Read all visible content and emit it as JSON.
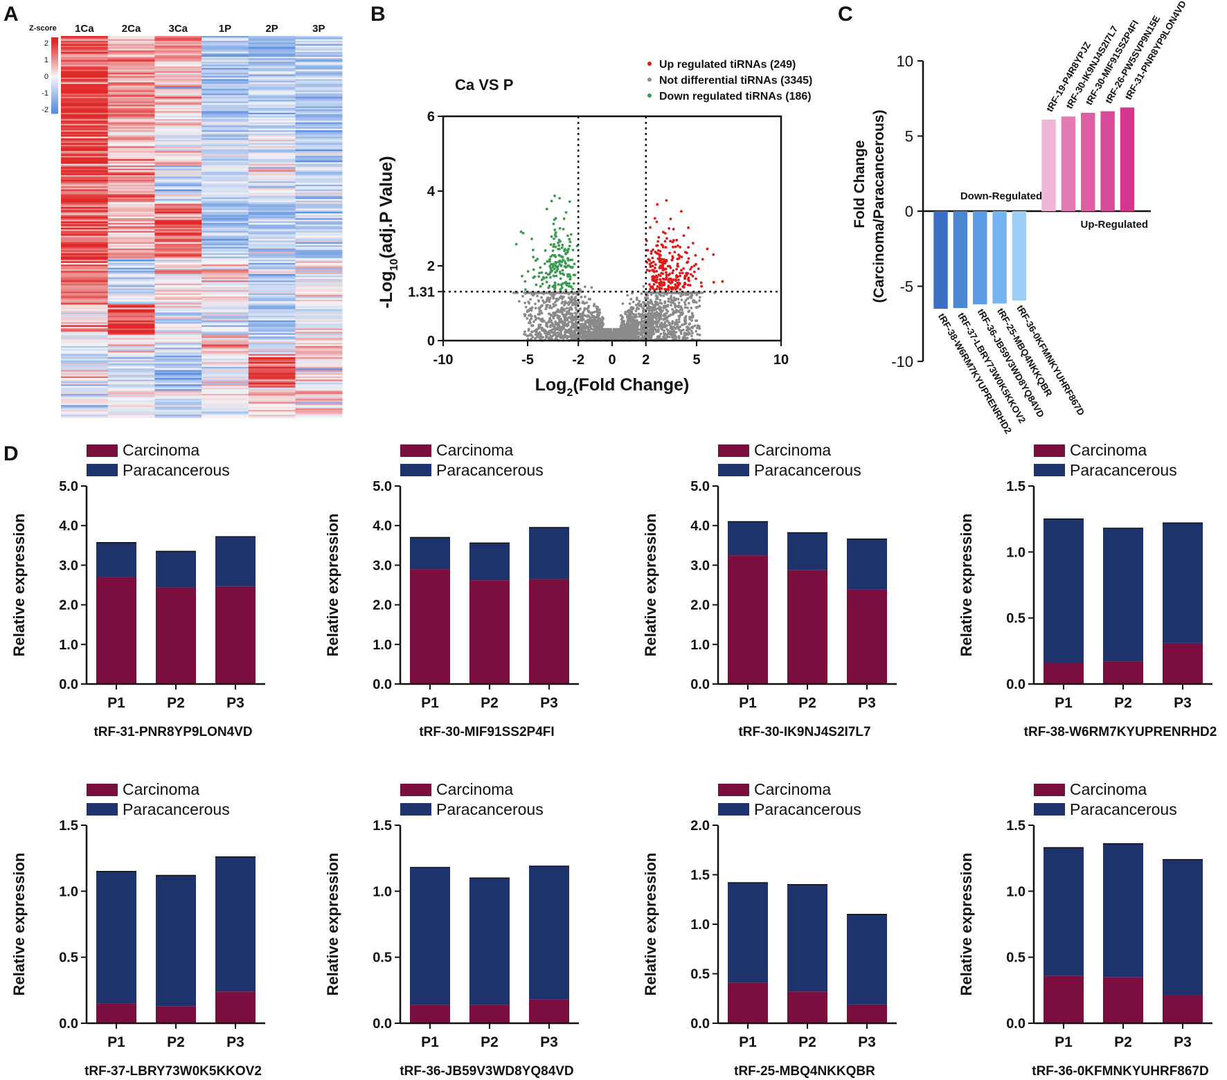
{
  "colors": {
    "carcinoma": "#7a0f3f",
    "paracancerous": "#1e336b",
    "heat_red": "#e02828",
    "heat_white": "#f5f5f7",
    "heat_blue": "#5b8fe0",
    "volcano_up": "#e01818",
    "volcano_nd": "#8a8a8a",
    "volcano_down": "#3a9a50"
  },
  "panels": {
    "A": "A",
    "B": "B",
    "C": "C",
    "D": "D"
  },
  "chart_data": [
    {
      "id": "heatmap",
      "type": "heatmap",
      "columns": [
        "1Ca",
        "2Ca",
        "3Ca",
        "1P",
        "2P",
        "3P"
      ],
      "scale_title": "Z-score",
      "scale_ticks": [
        "2",
        "1",
        "0",
        "-1",
        "-2"
      ],
      "note": "tiRNA expression z-scores, rows clustered"
    },
    {
      "id": "volcano",
      "type": "scatter",
      "title": "Ca VS P",
      "xlabel": "Log",
      "xlabel_sub": "2",
      "xlabel_rest": "(Fold Change)",
      "ylabel": "-Log",
      "ylabel_sub": "10",
      "ylabel_rest": "(adj.P Value)",
      "xlim": [
        -10,
        10
      ],
      "ylim": [
        0,
        6
      ],
      "x_ticks": [
        "-10",
        "-5",
        "-2",
        "0",
        "2",
        "5",
        "10"
      ],
      "y_ticks": [
        "0",
        "1.31",
        "2",
        "4",
        "6"
      ],
      "thresholds": {
        "log2fc": 2,
        "neglog10p": 1.31
      },
      "legend": [
        {
          "label": "Up regulated tiRNAs (249)",
          "key": "volcano_up"
        },
        {
          "label": "Not differential tiRNAs (3345)",
          "key": "volcano_nd"
        },
        {
          "label": "Down regulated tiRNAs (186)",
          "key": "volcano_down"
        }
      ],
      "counts": {
        "up": 249,
        "nd": 3345,
        "down": 186
      }
    },
    {
      "id": "foldchange",
      "type": "bar",
      "ylabel": "Fold Change",
      "ylabel2": "(Carcinoma/Paracancerous)",
      "ylim": [
        -10,
        10
      ],
      "y_ticks": [
        "10",
        "5",
        "0",
        "-5",
        "-10"
      ],
      "down_label": "Down-Regulated",
      "up_label": "Up-Regulated",
      "categories": [
        "tRF-38-W6RM7KYUPRENRHD2",
        "tRF-37-LBRY73W0K5KKOV2",
        "tRF-36-JB59V3WD8YQ84VD",
        "tRF-25-MBQ4NKKQBR",
        "tRF-36-0KFMNKYUHRF867D",
        "tRF-19-P4R8YPJZ",
        "tRF-30-IK9NJ4S2I7L7",
        "tRF-30-MIF91SS2P4FI",
        "tRF-26-PW5SVP9N15E",
        "tRF-31-PNR8YP9LON4VD"
      ],
      "values": [
        -6.5,
        -6.45,
        -6.2,
        -6.15,
        -5.95,
        6.1,
        6.3,
        6.55,
        6.65,
        6.9
      ],
      "bar_colors": [
        "#3a6fc4",
        "#4a86d4",
        "#5a9ce6",
        "#74b4f0",
        "#9ccff7",
        "#efb6d6",
        "#e47ab3",
        "#de5ea4",
        "#d94a9a",
        "#d4368e"
      ]
    },
    {
      "id": "d1",
      "type": "bar",
      "title": "tRF-31-PNR8YP9LON4VD",
      "categories": [
        "P1",
        "P2",
        "P3"
      ],
      "series": [
        {
          "name": "Carcinoma",
          "values": [
            2.7,
            2.44,
            2.47
          ]
        },
        {
          "name": "Paracancerous",
          "values": [
            0.87,
            0.91,
            1.25
          ]
        }
      ],
      "ylabel": "Relative expression",
      "ylim": [
        0,
        5
      ],
      "y_ticks": [
        "0.0",
        "1.0",
        "2.0",
        "3.0",
        "4.0",
        "5.0"
      ]
    },
    {
      "id": "d2",
      "type": "bar",
      "title": "tRF-30-MIF91SS2P4FI",
      "categories": [
        "P1",
        "P2",
        "P3"
      ],
      "series": [
        {
          "name": "Carcinoma",
          "values": [
            2.9,
            2.62,
            2.65
          ]
        },
        {
          "name": "Paracancerous",
          "values": [
            0.8,
            0.94,
            1.3
          ]
        }
      ],
      "ylabel": "Relative expression",
      "ylim": [
        0,
        5
      ],
      "y_ticks": [
        "0.0",
        "1.0",
        "2.0",
        "3.0",
        "4.0",
        "5.0"
      ]
    },
    {
      "id": "d3",
      "type": "bar",
      "title": "tRF-30-IK9NJ4S2I7L7",
      "categories": [
        "P1",
        "P2",
        "P3"
      ],
      "series": [
        {
          "name": "Carcinoma",
          "values": [
            3.25,
            2.88,
            2.38
          ]
        },
        {
          "name": "Paracancerous",
          "values": [
            0.85,
            0.94,
            1.28
          ]
        }
      ],
      "ylabel": "Relative expression",
      "ylim": [
        0,
        5
      ],
      "y_ticks": [
        "0.0",
        "1.0",
        "2.0",
        "3.0",
        "4.0",
        "5.0"
      ]
    },
    {
      "id": "d4",
      "type": "bar",
      "title": "tRF-38-W6RM7KYUPRENRHD2",
      "categories": [
        "P1",
        "P2",
        "P3"
      ],
      "series": [
        {
          "name": "Carcinoma",
          "values": [
            0.16,
            0.17,
            0.31
          ]
        },
        {
          "name": "Paracancerous",
          "values": [
            1.09,
            1.01,
            0.91
          ]
        }
      ],
      "ylabel": "Relative expression",
      "ylim": [
        0,
        1.5
      ],
      "y_ticks": [
        "0.0",
        "0.5",
        "1.0",
        "1.5"
      ]
    },
    {
      "id": "d5",
      "type": "bar",
      "title": "tRF-37-LBRY73W0K5KKOV2",
      "categories": [
        "P1",
        "P2",
        "P3"
      ],
      "series": [
        {
          "name": "Carcinoma",
          "values": [
            0.15,
            0.13,
            0.24
          ]
        },
        {
          "name": "Paracancerous",
          "values": [
            1.0,
            0.99,
            1.02
          ]
        }
      ],
      "ylabel": "Relative expression",
      "ylim": [
        0,
        1.5
      ],
      "y_ticks": [
        "0.0",
        "0.5",
        "1.0",
        "1.5"
      ]
    },
    {
      "id": "d6",
      "type": "bar",
      "title": "tRF-36-JB59V3WD8YQ84VD",
      "categories": [
        "P1",
        "P2",
        "P3"
      ],
      "series": [
        {
          "name": "Carcinoma",
          "values": [
            0.14,
            0.14,
            0.18
          ]
        },
        {
          "name": "Paracancerous",
          "values": [
            1.04,
            0.96,
            1.01
          ]
        }
      ],
      "ylabel": "Relative expression",
      "ylim": [
        0,
        1.5
      ],
      "y_ticks": [
        "0.0",
        "0.5",
        "1.0",
        "1.5"
      ]
    },
    {
      "id": "d7",
      "type": "bar",
      "title": "tRF-25-MBQ4NKKQBR",
      "categories": [
        "P1",
        "P2",
        "P3"
      ],
      "series": [
        {
          "name": "Carcinoma",
          "values": [
            0.41,
            0.32,
            0.19
          ]
        },
        {
          "name": "Paracancerous",
          "values": [
            1.01,
            1.08,
            0.91
          ]
        }
      ],
      "ylabel": "Relative expression",
      "ylim": [
        0,
        2
      ],
      "y_ticks": [
        "0.0",
        "0.5",
        "1.0",
        "1.5",
        "2.0"
      ]
    },
    {
      "id": "d8",
      "type": "bar",
      "title": "tRF-36-0KFMNKYUHRF867D",
      "categories": [
        "P1",
        "P2",
        "P3"
      ],
      "series": [
        {
          "name": "Carcinoma",
          "values": [
            0.36,
            0.35,
            0.21
          ]
        },
        {
          "name": "Paracancerous",
          "values": [
            0.97,
            1.01,
            1.03
          ]
        }
      ],
      "ylabel": "Relative expression",
      "ylim": [
        0,
        1.5
      ],
      "y_ticks": [
        "0.0",
        "0.5",
        "1.0",
        "1.5"
      ]
    }
  ]
}
